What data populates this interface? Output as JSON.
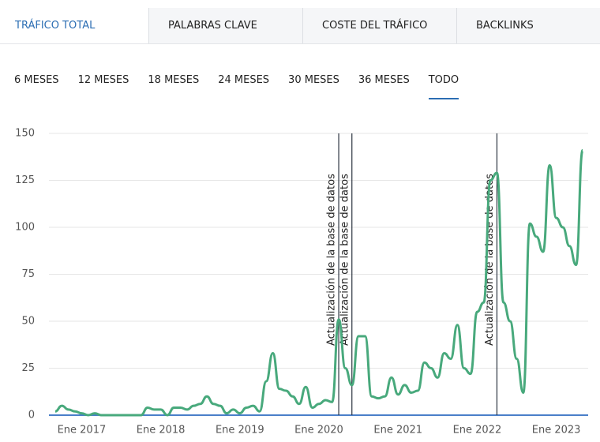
{
  "tabs": [
    "TRÁFICO TOTAL",
    "PALABRAS CLAVE",
    "COSTE DEL TRÁFICO",
    "BACKLINKS"
  ],
  "periods": [
    "6 MESES",
    "12 MESES",
    "18 MESES",
    "24 MESES",
    "30 MESES",
    "36 MESES",
    "TODO"
  ],
  "chart_data": {
    "type": "line",
    "x": [
      "2016-09",
      "2016-10",
      "2016-11",
      "2016-12",
      "2017-01",
      "2017-02",
      "2017-03",
      "2017-04",
      "2017-05",
      "2017-06",
      "2017-07",
      "2017-08",
      "2017-09",
      "2017-10",
      "2017-11",
      "2017-12",
      "2018-01",
      "2018-02",
      "2018-03",
      "2018-04",
      "2018-05",
      "2018-06",
      "2018-07",
      "2018-08",
      "2018-09",
      "2018-10",
      "2018-11",
      "2018-12",
      "2019-01",
      "2019-02",
      "2019-03",
      "2019-04",
      "2019-05",
      "2019-06",
      "2019-07",
      "2019-08",
      "2019-09",
      "2019-10",
      "2019-11",
      "2019-12",
      "2020-01",
      "2020-02",
      "2020-03",
      "2020-04",
      "2020-05",
      "2020-06",
      "2020-07",
      "2020-08",
      "2020-09",
      "2020-10",
      "2020-11",
      "2020-12",
      "2021-01",
      "2021-02",
      "2021-03",
      "2021-04",
      "2021-05",
      "2021-06",
      "2021-07",
      "2021-08",
      "2021-09",
      "2021-10",
      "2021-11",
      "2021-12",
      "2022-01",
      "2022-02",
      "2022-03",
      "2022-04",
      "2022-05",
      "2022-06",
      "2022-07",
      "2022-08",
      "2022-09",
      "2022-10",
      "2022-11",
      "2022-12",
      "2023-01",
      "2023-02",
      "2023-03",
      "2023-04",
      "2023-05"
    ],
    "series": [
      {
        "color": "#48a97c",
        "values": [
          2,
          5,
          3,
          2,
          1,
          0,
          1,
          0,
          0,
          0,
          0,
          0,
          0,
          0,
          4,
          3,
          3,
          0,
          4,
          4,
          3,
          5,
          6,
          10,
          6,
          5,
          1,
          3,
          1,
          4,
          5,
          2,
          18,
          33,
          14,
          13,
          10,
          6,
          15,
          4,
          6,
          8,
          7,
          51,
          25,
          16,
          42,
          42,
          10,
          9,
          10,
          20,
          11,
          16,
          12,
          13,
          28,
          25,
          20,
          33,
          30,
          48,
          25,
          22,
          55,
          60,
          125,
          129,
          60,
          50,
          30,
          12,
          102,
          95,
          87,
          133,
          105,
          100,
          90,
          80,
          141
        ]
      }
    ],
    "xlim": [
      "2016-09",
      "2023-05"
    ],
    "xticks": [
      {
        "value": "2017-01",
        "label": "Ene 2017"
      },
      {
        "value": "2018-01",
        "label": "Ene 2018"
      },
      {
        "value": "2019-01",
        "label": "Ene 2019"
      },
      {
        "value": "2020-01",
        "label": "Ene 2020"
      },
      {
        "value": "2021-01",
        "label": "Ene 2021"
      },
      {
        "value": "2022-01",
        "label": "Ene 2022"
      },
      {
        "value": "2023-01",
        "label": "Ene 2023"
      }
    ],
    "ylim": [
      0,
      150
    ],
    "yticks": [
      0,
      25,
      50,
      75,
      100,
      125,
      150
    ],
    "grid": true,
    "annotations": [
      {
        "x": "2020-04",
        "label": "Actualización de la base de datos"
      },
      {
        "x": "2020-06",
        "label": "Actualización de la base de datos"
      },
      {
        "x": "2022-04",
        "label": "Actualización de la base de datos"
      }
    ]
  }
}
